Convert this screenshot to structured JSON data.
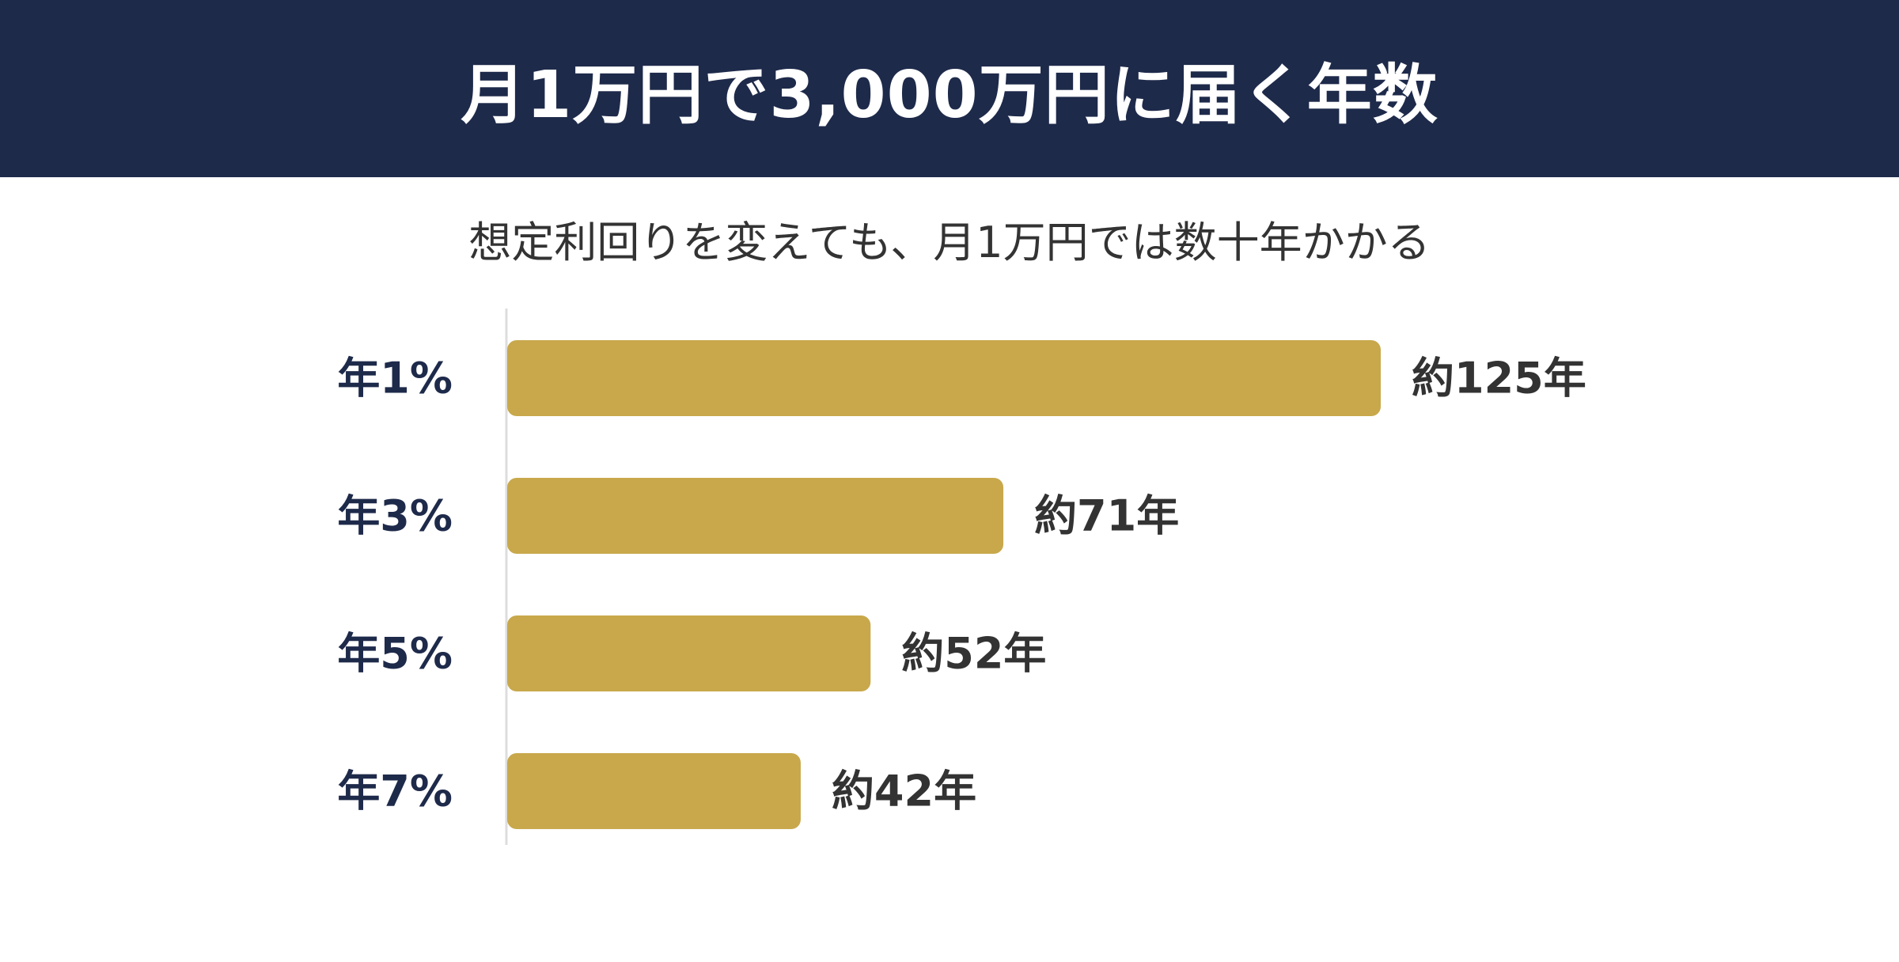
{
  "header": {
    "title": "月1万円で3,000万円に届く年数"
  },
  "subtitle": "想定利回りを変えても、月1万円では数十年かかる",
  "colors": {
    "header_bg": "#1e2a4a",
    "bar": "#c8a84b",
    "category_label": "#1e2a4a",
    "value_label": "#333333",
    "axis_line": "#dddddd"
  },
  "chart_data": {
    "type": "bar",
    "orientation": "horizontal",
    "title": "月1万円で3,000万円に届く年数",
    "subtitle": "想定利回りを変えても、月1万円では数十年かかる",
    "categories": [
      "年1%",
      "年3%",
      "年5%",
      "年7%"
    ],
    "values": [
      125,
      71,
      52,
      42
    ],
    "value_labels": [
      "約125年",
      "約71年",
      "約52年",
      "約42年"
    ],
    "xlim": [
      0,
      125
    ],
    "grid": false,
    "legend": "none"
  }
}
